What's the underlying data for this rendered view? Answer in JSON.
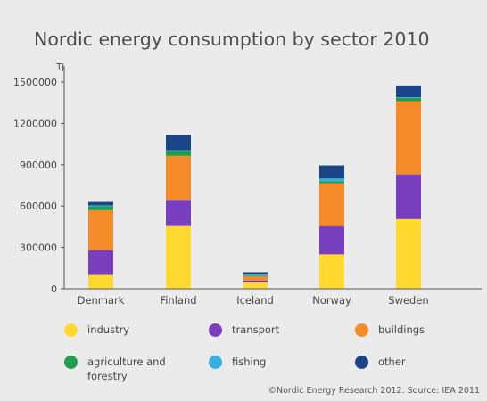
{
  "chart_data": {
    "type": "bar",
    "stacked": true,
    "title": "Nordic energy consumption by sector 2010",
    "ylabel": "TJ",
    "xlabel": "",
    "ylim": [
      0,
      1500000
    ],
    "yticks": [
      "0",
      "300000",
      "600000",
      "900000",
      "1200000",
      "1500000"
    ],
    "categories": [
      "Denmark",
      "Finland",
      "Iceland",
      "Norway",
      "Sweden"
    ],
    "series": [
      {
        "name": "industry",
        "color": "#ffd92f",
        "values": [
          100000,
          455000,
          45000,
          250000,
          505000
        ]
      },
      {
        "name": "transport",
        "color": "#7a3fbf",
        "values": [
          180000,
          190000,
          15000,
          205000,
          325000
        ]
      },
      {
        "name": "buildings",
        "color": "#f58a28",
        "values": [
          290000,
          320000,
          30000,
          310000,
          530000
        ]
      },
      {
        "name": "agriculture and forestry",
        "color": "#1f9e4b",
        "values": [
          30000,
          35000,
          5000,
          15000,
          25000
        ]
      },
      {
        "name": "fishing",
        "color": "#37aee0",
        "values": [
          5000,
          5000,
          10000,
          20000,
          5000
        ]
      },
      {
        "name": "other",
        "color": "#1c4587",
        "values": [
          25000,
          110000,
          15000,
          95000,
          85000
        ]
      }
    ],
    "grid": false,
    "legend_position": "bottom"
  },
  "footer": "©Nordic Energy Research 2012. Source: IEA 2011"
}
